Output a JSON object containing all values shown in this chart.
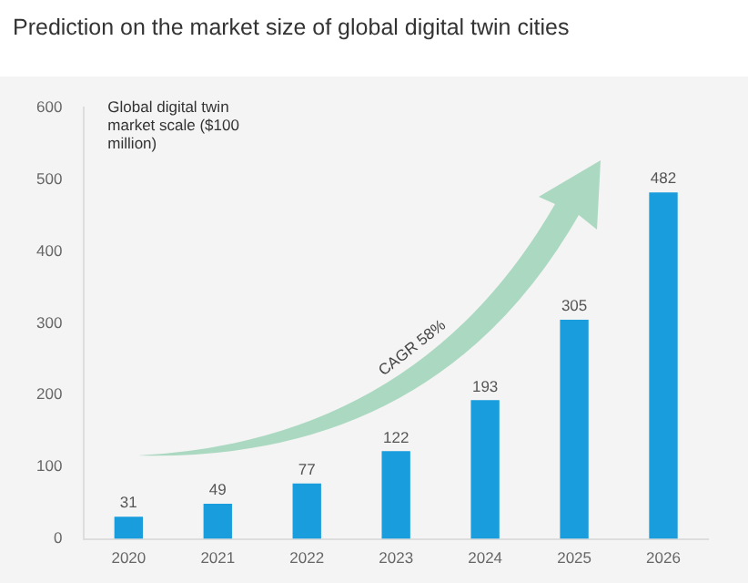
{
  "chart_data": {
    "type": "bar",
    "title": "Prediction on the market size of global digital twin cities",
    "ylabel": "Global digital twin market scale ($100 million)",
    "categories": [
      "2020",
      "2021",
      "2022",
      "2023",
      "2024",
      "2025",
      "2026"
    ],
    "values": [
      31,
      49,
      77,
      122,
      193,
      305,
      482
    ],
    "color": "#1a9ddd",
    "ylim": [
      0,
      600
    ],
    "yticks": [
      0,
      100,
      200,
      300,
      400,
      500,
      600
    ],
    "grid": false,
    "legend": false,
    "data_labels": true,
    "annotations": [
      "CAGR 58%"
    ]
  }
}
